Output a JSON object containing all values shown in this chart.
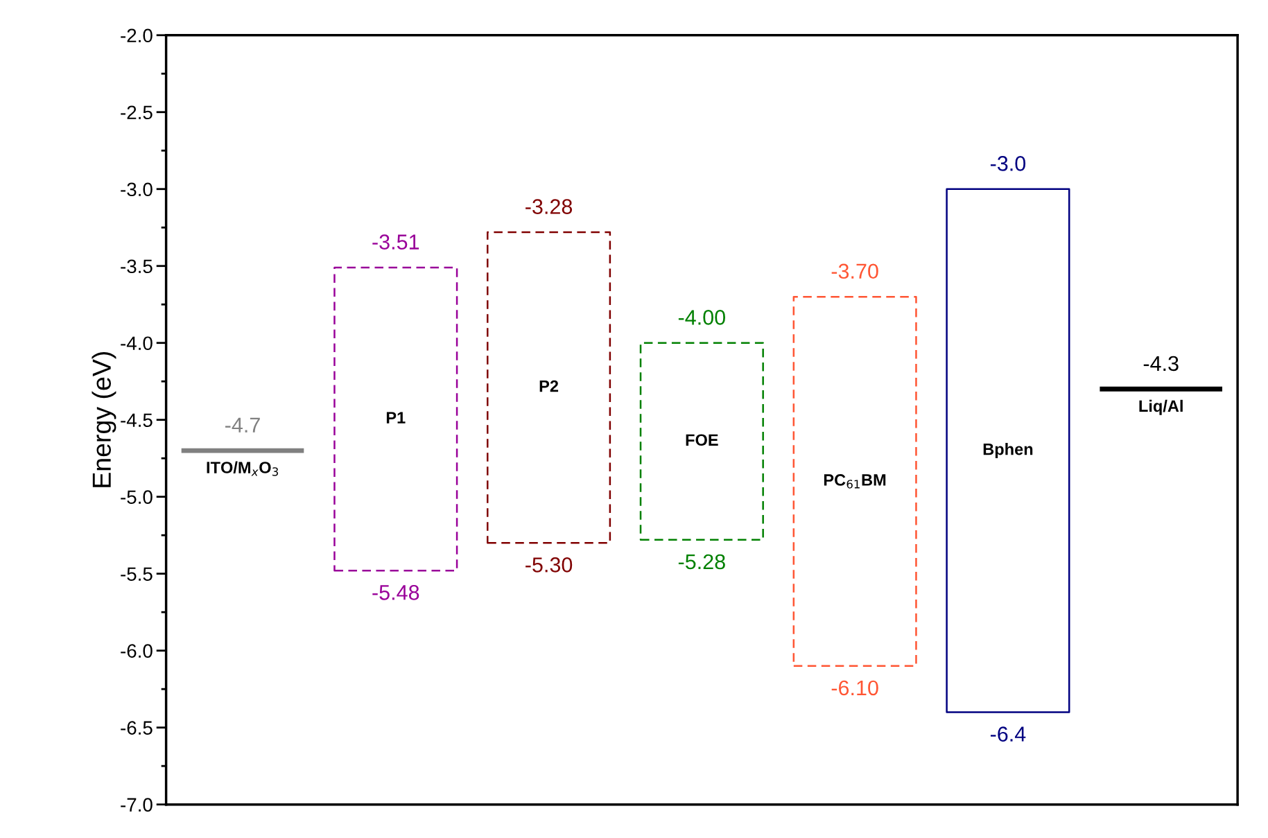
{
  "chart_data": {
    "type": "bar",
    "ylabel": "Energy (eV)",
    "categories": [
      null,
      null,
      null,
      null,
      null,
      null,
      null
    ],
    "base": [
      -4.7,
      -5.48,
      -5.3,
      -5.28,
      -6.1,
      -6.4,
      -4.3
    ],
    "values": [
      0,
      1.97,
      2.02,
      1.28,
      2.4,
      3.4,
      0
    ],
    "colors": [
      "#808080",
      "#990099",
      "#800000",
      "#008000",
      "#ff5533",
      "#000080",
      "#000000"
    ],
    "line_style": [
      "solid",
      "dashed",
      "dashed",
      "dashed",
      "dashed",
      "solid",
      "solid"
    ],
    "annotations": [
      {
        "text": "-4.7",
        "y": -4.7
      },
      "ITO/M$_{x}$O$_{3}$",
      {
        "text": "-3.51",
        "y": -3.51
      },
      "P1",
      {
        "text": "-5.48",
        "y": -5.48
      },
      {
        "text": "-3.28",
        "y": -3.28
      },
      "P2",
      {
        "text": "-5.30",
        "y": -5.3
      },
      {
        "text": "-4.00",
        "y": -4.0
      },
      "FOE",
      {
        "text": "-5.28",
        "y": -5.28
      },
      {
        "text": "-3.70",
        "y": -3.7
      },
      "PC$_{61}$BM",
      {
        "text": "-6.10",
        "y": -6.1
      },
      {
        "text": "-3.0",
        "y": -3.0
      },
      "Bphen",
      {
        "text": "-6.4",
        "y": -6.4
      },
      {
        "text": "-4.3",
        "y": -4.3
      },
      "Liq/Al"
    ],
    "ylim": [
      -7,
      -2
    ],
    "yticks": [
      {
        "value": -7,
        "label": "-7.0"
      },
      {
        "value": -6.5,
        "label": "-6.5"
      },
      {
        "value": -6,
        "label": "-6.0"
      },
      {
        "value": -5.5,
        "label": "-5.5"
      },
      {
        "value": -5,
        "label": "-5.0"
      },
      {
        "value": -4.5,
        "label": "-4.5"
      },
      {
        "value": -4,
        "label": "-4.0"
      },
      {
        "value": -3.5,
        "label": "-3.5"
      },
      {
        "value": -3,
        "label": "-3.0"
      },
      {
        "value": -2.5,
        "label": "-2.5"
      },
      {
        "value": -2,
        "label": "-2.0"
      }
    ],
    "tick_labels": "y",
    "grid": false,
    "legend": false
  }
}
